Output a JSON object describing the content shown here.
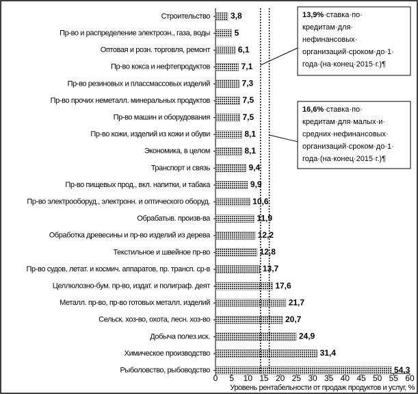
{
  "chart_data": {
    "type": "barh",
    "categories": [
      "Строительство",
      "Пр-во и распределение электроэн., газа, воды",
      "Оптовая и розн. торговля, ремонт",
      "Пр-во кокса и нефтепродуктов",
      "Пр-во резиновых и пласcмассовых изделий",
      "Пр-во прочих неметалл. минеральных продуктов",
      "Пр-во машин и оборудования",
      "Пр-во кожи, изделий из кожи и обуви",
      "Экономика, в целом",
      "Транспорт и связь",
      "Пр-во пищевых прод., вкл. напитки, и табака",
      "Пр-во электрооборуд., электронн. и оптического оборуд.",
      "Обрабатыв. произв-ва",
      "Обработка древесины и пр-во изделий из дерева",
      "Текстильное и швейное пр-во",
      "Пр-во судов, летат. и космич. аппаратов, пр. трансп. ср-в",
      "Целлюлозно-бум. пр-во, издат. и полиграф. деят",
      "Металл. пр-во, пр-во готовых металл. изделий",
      "Сельск. хоз-во, охота, лесн. хоз-во",
      "Добыча полез.иск.",
      "Химическое производство",
      "Рыболовство, рыбоводство"
    ],
    "values": [
      3.8,
      5,
      6.1,
      7.1,
      7.3,
      7.5,
      7.5,
      8.1,
      8.1,
      9.4,
      9.9,
      10.6,
      11.9,
      12.2,
      12.8,
      13.7,
      17.6,
      21.7,
      20.7,
      24.9,
      31.4,
      54.3
    ],
    "value_labels": [
      "3,8",
      "5",
      "6,1",
      "7,1",
      "7,3",
      "7,5",
      "7,5",
      "8,1",
      "8,1",
      "9,4",
      "9,9",
      "10,6",
      "11,9",
      "12,2",
      "12,8",
      "13,7",
      "17,6",
      "21,7",
      "20,7",
      "24,9",
      "31,4",
      "54,3"
    ],
    "color": "#555555",
    "xlabel": "Уровень рентабельности от продаж продуктов и услуг, %",
    "xlim": [
      0,
      60
    ],
    "xticks": [
      0,
      5,
      10,
      15,
      20,
      25,
      30,
      35,
      40,
      45,
      50,
      55,
      60
    ],
    "reference_lines": [
      {
        "value": 13.9,
        "bold": "13,9%",
        "lines": [
          "·ставка·по·",
          "кредитам·для·",
          "нефинансовых·",
          "организаций·сроком·до·1·",
          "года·(на·конец·2015·г.)¶"
        ]
      },
      {
        "value": 16.6,
        "bold": "16,6%",
        "lines": [
          "·ставка·по·",
          "кредитам·для·малых·и·",
          "средних·нефинансовых·",
          "организаций·сроком·до·1·",
          "года·(на·конец·2015·г.)¶"
        ]
      }
    ]
  }
}
